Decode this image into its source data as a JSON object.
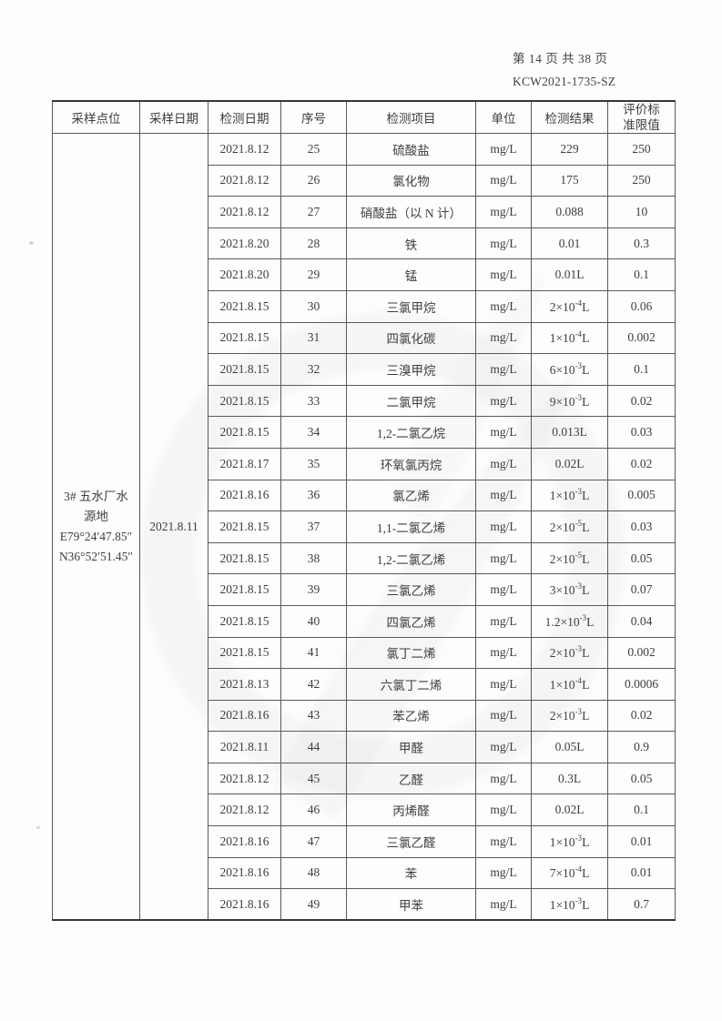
{
  "page_header": {
    "page_indicator": "第 14 页 共 38 页",
    "report_code": "KCW2021-1735-SZ"
  },
  "table": {
    "columns": [
      "采样点位",
      "采样日期",
      "检测日期",
      "序号",
      "检测项目",
      "单位",
      "检测结果",
      "评价标准限值"
    ],
    "sampling_point": {
      "lines": [
        "3#  五水厂水",
        "源地",
        "E79°24′47.85″",
        "N36°52′51.45″"
      ]
    },
    "sampling_date": "2021.8.11",
    "rows": [
      {
        "test_date": "2021.8.12",
        "no": "25",
        "item": "硫酸盐",
        "unit": "mg/L",
        "result": "229",
        "limit": "250"
      },
      {
        "test_date": "2021.8.12",
        "no": "26",
        "item": "氯化物",
        "unit": "mg/L",
        "result": "175",
        "limit": "250"
      },
      {
        "test_date": "2021.8.12",
        "no": "27",
        "item": "硝酸盐（以 N 计）",
        "unit": "mg/L",
        "result": "0.088",
        "limit": "10"
      },
      {
        "test_date": "2021.8.20",
        "no": "28",
        "item": "铁",
        "unit": "mg/L",
        "result": "0.01",
        "limit": "0.3"
      },
      {
        "test_date": "2021.8.20",
        "no": "29",
        "item": "锰",
        "unit": "mg/L",
        "result": "0.01L",
        "limit": "0.1"
      },
      {
        "test_date": "2021.8.15",
        "no": "30",
        "item": "三氯甲烷",
        "unit": "mg/L",
        "result": "2×10^{-4}L",
        "limit": "0.06"
      },
      {
        "test_date": "2021.8.15",
        "no": "31",
        "item": "四氯化碳",
        "unit": "mg/L",
        "result": "1×10^{-4}L",
        "limit": "0.002"
      },
      {
        "test_date": "2021.8.15",
        "no": "32",
        "item": "三溴甲烷",
        "unit": "mg/L",
        "result": "6×10^{-3}L",
        "limit": "0.1"
      },
      {
        "test_date": "2021.8.15",
        "no": "33",
        "item": "二氯甲烷",
        "unit": "mg/L",
        "result": "9×10^{-3}L",
        "limit": "0.02"
      },
      {
        "test_date": "2021.8.15",
        "no": "34",
        "item": "1,2-二氯乙烷",
        "unit": "mg/L",
        "result": "0.013L",
        "limit": "0.03"
      },
      {
        "test_date": "2021.8.17",
        "no": "35",
        "item": "环氧氯丙烷",
        "unit": "mg/L",
        "result": "0.02L",
        "limit": "0.02"
      },
      {
        "test_date": "2021.8.16",
        "no": "36",
        "item": "氯乙烯",
        "unit": "mg/L",
        "result": "1×10^{-3}L",
        "limit": "0.005"
      },
      {
        "test_date": "2021.8.15",
        "no": "37",
        "item": "1,1-二氯乙烯",
        "unit": "mg/L",
        "result": "2×10^{-5}L",
        "limit": "0.03"
      },
      {
        "test_date": "2021.8.15",
        "no": "38",
        "item": "1,2-二氯乙烯",
        "unit": "mg/L",
        "result": "2×10^{-5}L",
        "limit": "0.05"
      },
      {
        "test_date": "2021.8.15",
        "no": "39",
        "item": "三氯乙烯",
        "unit": "mg/L",
        "result": "3×10^{-3}L",
        "limit": "0.07"
      },
      {
        "test_date": "2021.8.15",
        "no": "40",
        "item": "四氯乙烯",
        "unit": "mg/L",
        "result": "1.2×10^{-3}L",
        "limit": "0.04"
      },
      {
        "test_date": "2021.8.15",
        "no": "41",
        "item": "氯丁二烯",
        "unit": "mg/L",
        "result": "2×10^{-3}L",
        "limit": "0.002"
      },
      {
        "test_date": "2021.8.13",
        "no": "42",
        "item": "六氯丁二烯",
        "unit": "mg/L",
        "result": "1×10^{-4}L",
        "limit": "0.0006"
      },
      {
        "test_date": "2021.8.16",
        "no": "43",
        "item": "苯乙烯",
        "unit": "mg/L",
        "result": "2×10^{-3}L",
        "limit": "0.02"
      },
      {
        "test_date": "2021.8.11",
        "no": "44",
        "item": "甲醛",
        "unit": "mg/L",
        "result": "0.05L",
        "limit": "0.9"
      },
      {
        "test_date": "2021.8.12",
        "no": "45",
        "item": "乙醛",
        "unit": "mg/L",
        "result": "0.3L",
        "limit": "0.05"
      },
      {
        "test_date": "2021.8.12",
        "no": "46",
        "item": "丙烯醛",
        "unit": "mg/L",
        "result": "0.02L",
        "limit": "0.1"
      },
      {
        "test_date": "2021.8.16",
        "no": "47",
        "item": "三氯乙醛",
        "unit": "mg/L",
        "result": "1×10^{-3}L",
        "limit": "0.01"
      },
      {
        "test_date": "2021.8.16",
        "no": "48",
        "item": "苯",
        "unit": "mg/L",
        "result": "7×10^{-4}L",
        "limit": "0.01"
      },
      {
        "test_date": "2021.8.16",
        "no": "49",
        "item": "甲苯",
        "unit": "mg/L",
        "result": "1×10^{-3}L",
        "limit": "0.7"
      }
    ]
  }
}
